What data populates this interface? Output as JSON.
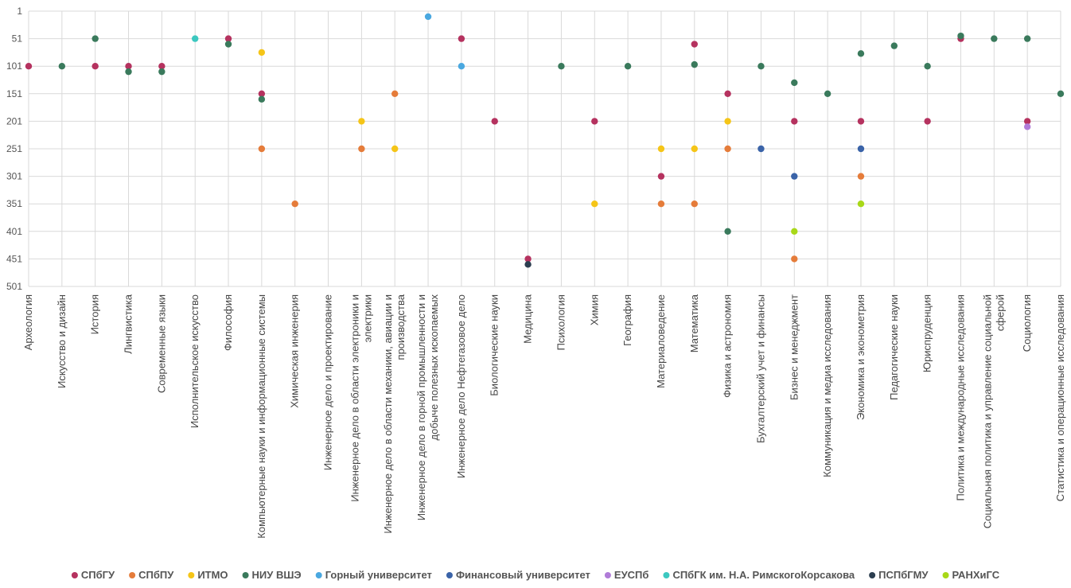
{
  "chart_data": {
    "type": "scatter",
    "title": "",
    "xlabel": "",
    "ylabel": "",
    "ylim": [
      1,
      501
    ],
    "y_inverted": true,
    "yticks": [
      1,
      51,
      101,
      151,
      201,
      251,
      301,
      351,
      401,
      451,
      501
    ],
    "categories": [
      [
        "Археология"
      ],
      [
        "Искусство и дизайн"
      ],
      [
        "История"
      ],
      [
        "Лингвистика"
      ],
      [
        "Современные языки"
      ],
      [
        "Исполнительское искусство"
      ],
      [
        "Философия"
      ],
      [
        "Компьютерные науки и информационные системы"
      ],
      [
        "Химическая инженерия"
      ],
      [
        "Инженерное дело и проектирование"
      ],
      [
        "Инженерное дело в области электроники и",
        "электрики"
      ],
      [
        "Инженерное дело в области механики, авиации и",
        "производства"
      ],
      [
        "Инженерное дело в горной промышленности и",
        "добыче полезных ископаемых"
      ],
      [
        "Инженерное дело Нефтегазовое дело"
      ],
      [
        "Биологические науки"
      ],
      [
        "Медицина"
      ],
      [
        "Психология"
      ],
      [
        "Химия"
      ],
      [
        "География"
      ],
      [
        "Материаловедение"
      ],
      [
        "Математика"
      ],
      [
        "Физика и астрономия"
      ],
      [
        "Бухгалтерский учет и финансы"
      ],
      [
        "Бизнес и менеджмент"
      ],
      [
        "Коммуникация и медиа исследования"
      ],
      [
        "Экономика и эконометрия"
      ],
      [
        "Педагогические науки"
      ],
      [
        "Юриспруденция"
      ],
      [
        "Политика и международные исследования"
      ],
      [
        "Социальная политика и управление социальной",
        "сферой"
      ],
      [
        "Социология"
      ],
      [
        "Статистика и операционные исследования"
      ]
    ],
    "series": [
      {
        "name": "СПбГУ",
        "color": "#b5325f",
        "values": [
          101,
          null,
          101,
          101,
          101,
          null,
          51,
          151,
          null,
          null,
          null,
          null,
          null,
          51,
          201,
          451,
          null,
          201,
          null,
          301,
          61,
          151,
          null,
          201,
          null,
          201,
          null,
          201,
          51,
          null,
          201,
          null
        ]
      },
      {
        "name": "СПбПУ",
        "color": "#e57c3a",
        "values": [
          null,
          null,
          null,
          null,
          null,
          null,
          null,
          251,
          351,
          null,
          251,
          151,
          null,
          null,
          null,
          null,
          null,
          null,
          null,
          351,
          351,
          251,
          null,
          451,
          null,
          301,
          null,
          null,
          null,
          null,
          null,
          null
        ]
      },
      {
        "name": "ИТМО",
        "color": "#f5c518",
        "values": [
          null,
          null,
          null,
          null,
          null,
          null,
          null,
          76,
          null,
          null,
          201,
          251,
          null,
          null,
          null,
          null,
          null,
          351,
          null,
          251,
          251,
          201,
          null,
          null,
          null,
          null,
          null,
          null,
          null,
          null,
          null,
          null
        ]
      },
      {
        "name": "НИУ ВШЭ",
        "color": "#3a7a5c",
        "values": [
          null,
          101,
          51,
          111,
          111,
          null,
          61,
          161,
          null,
          null,
          null,
          null,
          null,
          null,
          null,
          null,
          101,
          null,
          101,
          null,
          98,
          401,
          101,
          131,
          151,
          78,
          64,
          101,
          46,
          51,
          51,
          151
        ]
      },
      {
        "name": "Горный университет",
        "color": "#4aa8e0",
        "values": [
          null,
          null,
          null,
          null,
          null,
          null,
          null,
          null,
          null,
          null,
          null,
          null,
          11,
          101,
          null,
          null,
          null,
          null,
          null,
          null,
          null,
          null,
          null,
          null,
          null,
          null,
          null,
          null,
          null,
          null,
          null,
          null
        ]
      },
      {
        "name": "Финансовый университет",
        "color": "#3a63a8",
        "values": [
          null,
          null,
          null,
          null,
          null,
          null,
          null,
          null,
          null,
          null,
          null,
          null,
          null,
          null,
          null,
          null,
          null,
          null,
          null,
          null,
          null,
          null,
          251,
          301,
          null,
          251,
          null,
          null,
          null,
          null,
          null,
          null
        ]
      },
      {
        "name": "ЕУСПб",
        "color": "#b07cd8",
        "values": [
          null,
          null,
          null,
          null,
          null,
          null,
          null,
          null,
          null,
          null,
          null,
          null,
          null,
          null,
          null,
          null,
          null,
          null,
          null,
          null,
          null,
          null,
          null,
          null,
          null,
          null,
          null,
          null,
          null,
          null,
          211,
          null
        ]
      },
      {
        "name": "СПбГК им. Н.А. РимскогоКорсакова",
        "color": "#3cc8c0",
        "values": [
          null,
          null,
          null,
          null,
          null,
          51,
          null,
          null,
          null,
          null,
          null,
          null,
          null,
          null,
          null,
          null,
          null,
          null,
          null,
          null,
          null,
          null,
          null,
          null,
          null,
          null,
          null,
          null,
          null,
          null,
          null,
          null
        ]
      },
      {
        "name": "ПСПбГМУ",
        "color": "#2c3e50",
        "values": [
          null,
          null,
          null,
          null,
          null,
          null,
          null,
          null,
          null,
          null,
          null,
          null,
          null,
          null,
          null,
          461,
          null,
          null,
          null,
          null,
          null,
          null,
          null,
          null,
          null,
          null,
          null,
          null,
          null,
          null,
          null,
          null
        ]
      },
      {
        "name": "РАНХиГС",
        "color": "#a8d818",
        "values": [
          null,
          null,
          null,
          null,
          null,
          null,
          null,
          null,
          null,
          null,
          null,
          null,
          null,
          null,
          null,
          null,
          null,
          null,
          null,
          null,
          null,
          null,
          null,
          401,
          null,
          351,
          null,
          null,
          null,
          null,
          null,
          null
        ]
      }
    ],
    "legend_position": "bottom",
    "grid": true
  }
}
